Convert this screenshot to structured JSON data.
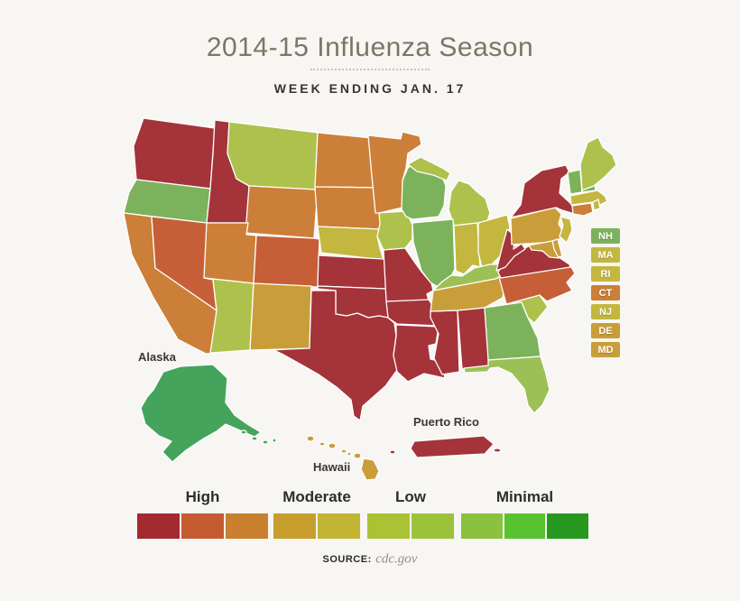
{
  "header": {
    "title": "2014-15 Influenza Season",
    "subtitle": "WEEK ENDING JAN. 17"
  },
  "source": {
    "label": "SOURCE:",
    "value": "cdc.gov"
  },
  "map": {
    "area_labels": {
      "alaska": "Alaska",
      "hawaii": "Hawaii",
      "puerto_rico": "Puerto Rico"
    },
    "inset_order": [
      "NH",
      "MA",
      "RI",
      "CT",
      "NJ",
      "DE",
      "MD"
    ],
    "level_colors": {
      "1": "#2a9b3c",
      "2": "#44a45c",
      "3": "#7bb25b",
      "4": "#9cc055",
      "5": "#aec14c",
      "6": "#c3b73f",
      "7": "#c99e3a",
      "8": "#cb7f38",
      "9": "#c65f38",
      "10": "#a5333a"
    }
  },
  "legend": {
    "level_colors": {
      "1": "#27981f",
      "2": "#59c231",
      "3": "#8ac13f",
      "4": "#9cc23c",
      "5": "#a9c334",
      "6": "#c1b533",
      "7": "#c79e2d",
      "8": "#c9802f",
      "9": "#c45b31",
      "10": "#a32a2e"
    }
  },
  "chart_data": {
    "type": "heatmap",
    "subtype": "us-choropleth",
    "title": "2014-15 Influenza Season",
    "subtitle": "WEEK ENDING JAN. 17",
    "legend_position": "bottom",
    "legend_groups": [
      {
        "label": "High",
        "levels": [
          10,
          9,
          8
        ]
      },
      {
        "label": "Moderate",
        "levels": [
          7,
          6
        ]
      },
      {
        "label": "Low",
        "levels": [
          5,
          4
        ]
      },
      {
        "label": "Minimal",
        "levels": [
          3,
          2,
          1
        ]
      }
    ],
    "states": [
      {
        "abbr": "WA",
        "name": "Washington",
        "level": 10,
        "category": "High"
      },
      {
        "abbr": "OR",
        "name": "Oregon",
        "level": 3,
        "category": "Minimal"
      },
      {
        "abbr": "CA",
        "name": "California",
        "level": 8,
        "category": "High"
      },
      {
        "abbr": "NV",
        "name": "Nevada",
        "level": 9,
        "category": "High"
      },
      {
        "abbr": "ID",
        "name": "Idaho",
        "level": 10,
        "category": "High"
      },
      {
        "abbr": "MT",
        "name": "Montana",
        "level": 5,
        "category": "Low"
      },
      {
        "abbr": "WY",
        "name": "Wyoming",
        "level": 8,
        "category": "High"
      },
      {
        "abbr": "UT",
        "name": "Utah",
        "level": 8,
        "category": "High"
      },
      {
        "abbr": "CO",
        "name": "Colorado",
        "level": 9,
        "category": "High"
      },
      {
        "abbr": "AZ",
        "name": "Arizona",
        "level": 5,
        "category": "Low"
      },
      {
        "abbr": "NM",
        "name": "New Mexico",
        "level": 7,
        "category": "Moderate"
      },
      {
        "abbr": "ND",
        "name": "North Dakota",
        "level": 8,
        "category": "High"
      },
      {
        "abbr": "SD",
        "name": "South Dakota",
        "level": 8,
        "category": "High"
      },
      {
        "abbr": "NE",
        "name": "Nebraska",
        "level": 6,
        "category": "Moderate"
      },
      {
        "abbr": "KS",
        "name": "Kansas",
        "level": 10,
        "category": "High"
      },
      {
        "abbr": "OK",
        "name": "Oklahoma",
        "level": 10,
        "category": "High"
      },
      {
        "abbr": "TX",
        "name": "Texas",
        "level": 10,
        "category": "High"
      },
      {
        "abbr": "MN",
        "name": "Minnesota",
        "level": 8,
        "category": "High"
      },
      {
        "abbr": "IA",
        "name": "Iowa",
        "level": 5,
        "category": "Low"
      },
      {
        "abbr": "MO",
        "name": "Missouri",
        "level": 10,
        "category": "High"
      },
      {
        "abbr": "AR",
        "name": "Arkansas",
        "level": 10,
        "category": "High"
      },
      {
        "abbr": "LA",
        "name": "Louisiana",
        "level": 10,
        "category": "High"
      },
      {
        "abbr": "WI",
        "name": "Wisconsin",
        "level": 3,
        "category": "Minimal"
      },
      {
        "abbr": "MI",
        "name": "Michigan",
        "level": 5,
        "category": "Low"
      },
      {
        "abbr": "IL",
        "name": "Illinois",
        "level": 3,
        "category": "Minimal"
      },
      {
        "abbr": "IN",
        "name": "Indiana",
        "level": 6,
        "category": "Moderate"
      },
      {
        "abbr": "OH",
        "name": "Ohio",
        "level": 6,
        "category": "Moderate"
      },
      {
        "abbr": "KY",
        "name": "Kentucky",
        "level": 4,
        "category": "Low"
      },
      {
        "abbr": "MS",
        "name": "Mississippi",
        "level": 10,
        "category": "High"
      },
      {
        "abbr": "AL",
        "name": "Alabama",
        "level": 10,
        "category": "High"
      },
      {
        "abbr": "TN",
        "name": "Tennessee",
        "level": 7,
        "category": "Moderate"
      },
      {
        "abbr": "GA",
        "name": "Georgia",
        "level": 3,
        "category": "Minimal"
      },
      {
        "abbr": "SC",
        "name": "South Carolina",
        "level": 5,
        "category": "Low"
      },
      {
        "abbr": "FL",
        "name": "Florida",
        "level": 4,
        "category": "Low"
      },
      {
        "abbr": "NC",
        "name": "North Carolina",
        "level": 9,
        "category": "High"
      },
      {
        "abbr": "VA",
        "name": "Virginia",
        "level": 10,
        "category": "High"
      },
      {
        "abbr": "WV",
        "name": "West Virginia",
        "level": 10,
        "category": "High"
      },
      {
        "abbr": "PA",
        "name": "Pennsylvania",
        "level": 7,
        "category": "Moderate"
      },
      {
        "abbr": "NY",
        "name": "New York",
        "level": 10,
        "category": "High"
      },
      {
        "abbr": "NJ",
        "name": "New Jersey",
        "level": 6,
        "category": "Moderate"
      },
      {
        "abbr": "DE",
        "name": "Delaware",
        "level": 7,
        "category": "Moderate"
      },
      {
        "abbr": "MD",
        "name": "Maryland",
        "level": 7,
        "category": "Moderate"
      },
      {
        "abbr": "VT",
        "name": "Vermont",
        "level": 3,
        "category": "Minimal"
      },
      {
        "abbr": "NH",
        "name": "New Hampshire",
        "level": 3,
        "category": "Minimal"
      },
      {
        "abbr": "MA",
        "name": "Massachusetts",
        "level": 6,
        "category": "Moderate"
      },
      {
        "abbr": "RI",
        "name": "Rhode Island",
        "level": 6,
        "category": "Moderate"
      },
      {
        "abbr": "CT",
        "name": "Connecticut",
        "level": 8,
        "category": "High"
      },
      {
        "abbr": "ME",
        "name": "Maine",
        "level": 5,
        "category": "Low"
      },
      {
        "abbr": "AK",
        "name": "Alaska",
        "level": 2,
        "category": "Minimal"
      },
      {
        "abbr": "HI",
        "name": "Hawaii",
        "level": 7,
        "category": "Moderate"
      },
      {
        "abbr": "PR",
        "name": "Puerto Rico",
        "level": 10,
        "category": "High"
      }
    ]
  }
}
